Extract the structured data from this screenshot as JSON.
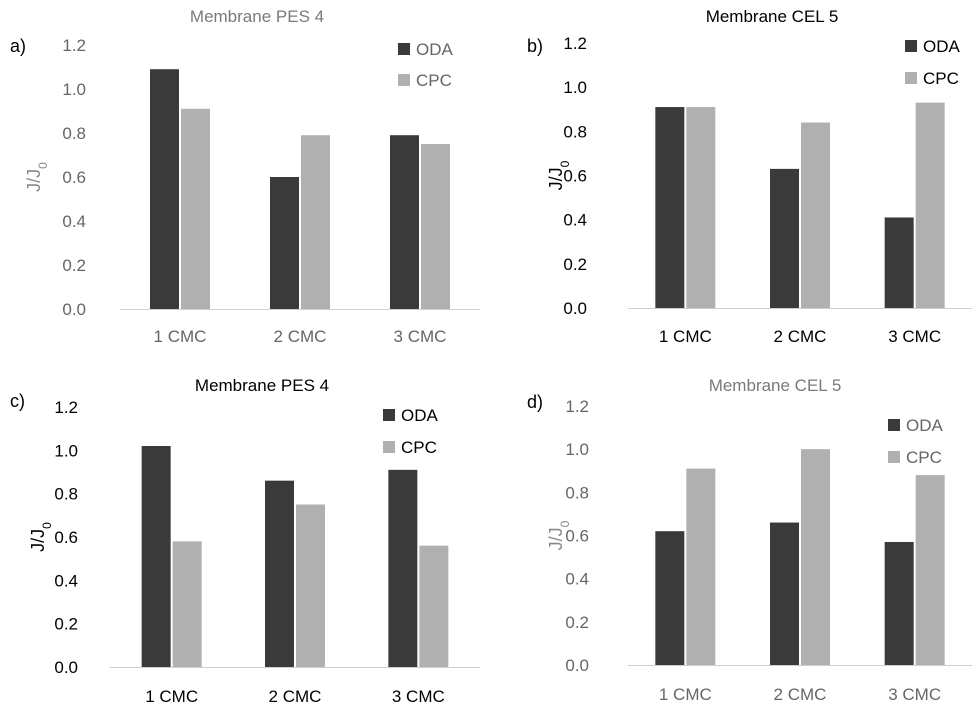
{
  "colors": {
    "ODA": "#3a3a3a",
    "CPC": "#b0b0b0",
    "axis": "#cfcfcf"
  },
  "chart_data": [
    {
      "panel": "a)",
      "type": "bar",
      "title": "Membrane  PES 4",
      "ylabel": "J/J0",
      "ylim": [
        0,
        1.2
      ],
      "ytick_labels": [
        "0.0",
        "0.2",
        "0.4",
        "0.6",
        "0.8",
        "1.0",
        "1.2"
      ],
      "categories": [
        "1 CMC",
        "2 CMC",
        "3 CMC"
      ],
      "series": [
        {
          "name": "ODA",
          "values": [
            1.09,
            0.6,
            0.79
          ]
        },
        {
          "name": "CPC",
          "values": [
            0.91,
            0.79,
            0.75
          ]
        }
      ],
      "legend": "top-right"
    },
    {
      "panel": "b)",
      "type": "bar",
      "title": "Membrane  CEL 5",
      "ylabel": "J/J0",
      "ylim": [
        0,
        1.2
      ],
      "ytick_labels": [
        "0.0",
        "0.2",
        "0.4",
        "0.6",
        "0.8",
        "1.0",
        "1.2"
      ],
      "categories": [
        "1 CMC",
        "2 CMC",
        "3 CMC"
      ],
      "series": [
        {
          "name": "ODA",
          "values": [
            0.91,
            0.63,
            0.41
          ]
        },
        {
          "name": "CPC",
          "values": [
            0.91,
            0.84,
            0.93
          ]
        }
      ],
      "legend": "top-right"
    },
    {
      "panel": "c)",
      "type": "bar",
      "title": "Membrane  PES 4",
      "ylabel": "J/J0",
      "ylim": [
        0,
        1.2
      ],
      "ytick_labels": [
        "0.0",
        "0.2",
        "0.4",
        "0.6",
        "0.8",
        "1.0",
        "1.2"
      ],
      "categories": [
        "1 CMC",
        "2 CMC",
        "3 CMC"
      ],
      "series": [
        {
          "name": "ODA",
          "values": [
            1.02,
            0.86,
            0.91
          ]
        },
        {
          "name": "CPC",
          "values": [
            0.58,
            0.75,
            0.56
          ]
        }
      ],
      "legend": "top-right"
    },
    {
      "panel": "d)",
      "type": "bar",
      "title": "Membrane  CEL 5",
      "ylabel": "J/J0",
      "ylim": [
        0,
        1.2
      ],
      "ytick_labels": [
        "0.0",
        "0.2",
        "0.4",
        "0.6",
        "0.8",
        "1.0",
        "1.2"
      ],
      "categories": [
        "1 CMC",
        "2 CMC",
        "3 CMC"
      ],
      "series": [
        {
          "name": "ODA",
          "values": [
            0.62,
            0.66,
            0.57
          ]
        },
        {
          "name": "CPC",
          "values": [
            0.91,
            1.0,
            0.88
          ]
        }
      ],
      "legend": "top-right"
    }
  ]
}
